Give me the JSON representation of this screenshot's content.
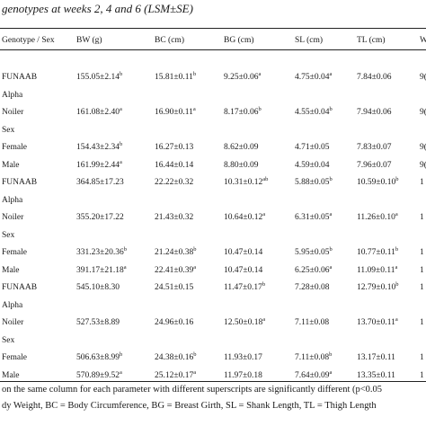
{
  "caption": "genotypes at weeks 2, 4 and 6 (LSM±SE)",
  "columns": [
    "Genotype / Sex",
    "BW (g)",
    "BC (cm)",
    "BG (cm)",
    "SL (cm)",
    "TL (cm)",
    "W"
  ],
  "groups": [
    {
      "rows": [
        {
          "label": "FUNAAB",
          "values": [
            "155.05±2.14",
            "15.81±0.11",
            "9.25±0.06",
            "4.75±0.04",
            "7.84±0.06",
            "9("
          ],
          "sups": [
            "b",
            "b",
            "a",
            "a",
            "",
            ""
          ]
        },
        {
          "label": "Alpha",
          "values": [
            "",
            "",
            "",
            "",
            "",
            ""
          ],
          "sups": [
            "",
            "",
            "",
            "",
            "",
            ""
          ]
        },
        {
          "label": "Noiler",
          "values": [
            "161.08±2.40",
            "16.90±0.11",
            "8.17±0.06",
            "4.55±0.04",
            "7.94±0.06",
            "9("
          ],
          "sups": [
            "a",
            "a",
            "b",
            "b",
            "",
            ""
          ]
        },
        {
          "label": "Sex",
          "values": [
            "",
            "",
            "",
            "",
            "",
            ""
          ],
          "sups": [
            "",
            "",
            "",
            "",
            "",
            ""
          ]
        },
        {
          "label": "Female",
          "values": [
            "154.43±2.34",
            "16.27±0.13",
            "8.62±0.09",
            "4.71±0.05",
            "7.83±0.07",
            "9("
          ],
          "sups": [
            "b",
            "",
            "",
            "",
            "",
            ""
          ]
        },
        {
          "label": "Male",
          "values": [
            "161.99±2.44",
            "16.44±0.14",
            "8.80±0.09",
            "4.59±0.04",
            "7.96±0.07",
            "9("
          ],
          "sups": [
            "a",
            "",
            "",
            "",
            "",
            ""
          ]
        }
      ]
    },
    {
      "rows": [
        {
          "label": "FUNAAB",
          "values": [
            "364.85±17.23",
            "22.22±0.32",
            "10.31±0.12",
            "5.88±0.05",
            "10.59±0.10",
            "1"
          ],
          "sups": [
            "",
            "",
            "ab",
            "b",
            "b",
            ""
          ]
        },
        {
          "label": "Alpha",
          "values": [
            "",
            "",
            "",
            "",
            "",
            ""
          ],
          "sups": [
            "",
            "",
            "",
            "",
            "",
            ""
          ]
        },
        {
          "label": "Noiler",
          "values": [
            "355.20±17.22",
            "21.43±0.32",
            "10.64±0.12",
            "6.31±0.05",
            "11.26±0.10",
            "1"
          ],
          "sups": [
            "",
            "",
            "a",
            "a",
            "a",
            ""
          ]
        },
        {
          "label": "Sex",
          "values": [
            "",
            "",
            "",
            "",
            "",
            ""
          ],
          "sups": [
            "",
            "",
            "",
            "",
            "",
            ""
          ]
        },
        {
          "label": "Female",
          "values": [
            "331.23±20.36",
            "21.24±0.38",
            "10.47±0.14",
            "5.95±0.05",
            "10.77±0.11",
            "1"
          ],
          "sups": [
            "b",
            "b",
            "",
            "b",
            "b",
            ""
          ]
        },
        {
          "label": "Male",
          "values": [
            "391.17±21.18",
            "22.41±0.39",
            "10.47±0.14",
            "6.25±0.06",
            "11.09±0.11",
            "1"
          ],
          "sups": [
            "a",
            "a",
            "",
            "a",
            "a",
            ""
          ]
        }
      ]
    },
    {
      "rows": [
        {
          "label": "FUNAAB",
          "values": [
            "545.10±8.30",
            "24.51±0.15",
            "11.47±0.17",
            "7.28±0.08",
            "12.79±0.10",
            "1"
          ],
          "sups": [
            "",
            "",
            "b",
            "",
            "b",
            ""
          ]
        },
        {
          "label": "Alpha",
          "values": [
            "",
            "",
            "",
            "",
            "",
            ""
          ],
          "sups": [
            "",
            "",
            "",
            "",
            "",
            ""
          ]
        },
        {
          "label": "Noiler",
          "values": [
            "527.53±8.89",
            "24.96±0.16",
            "12.50±0.18",
            "7.11±0.08",
            "13.70±0.11",
            "1"
          ],
          "sups": [
            "",
            "",
            "a",
            "",
            "a",
            ""
          ]
        },
        {
          "label": "Sex",
          "values": [
            "",
            "",
            "",
            "",
            "",
            ""
          ],
          "sups": [
            "",
            "",
            "",
            "",
            "",
            ""
          ]
        },
        {
          "label": "Female",
          "values": [
            "506.63±8.99",
            "24.38±0.16",
            "11.93±0.17",
            "7.11±0.08",
            "13.17±0.11",
            "1"
          ],
          "sups": [
            "b",
            "b",
            "",
            "b",
            "",
            ""
          ]
        },
        {
          "label": "Male",
          "values": [
            "570.89±9.52",
            "25.12±0.17",
            "11.97±0.18",
            "7.64±0.09",
            "13.35±0.11",
            "1"
          ],
          "sups": [
            "a",
            "a",
            "",
            "a",
            "",
            ""
          ]
        }
      ]
    }
  ],
  "footnotes": [
    "on the same column for each parameter with different superscripts are significantly different (p<0.05",
    "dy Weight, BC = Body Circumference, BG = Breast Girth, SL = Shank Length, TL = Thigh Length"
  ]
}
